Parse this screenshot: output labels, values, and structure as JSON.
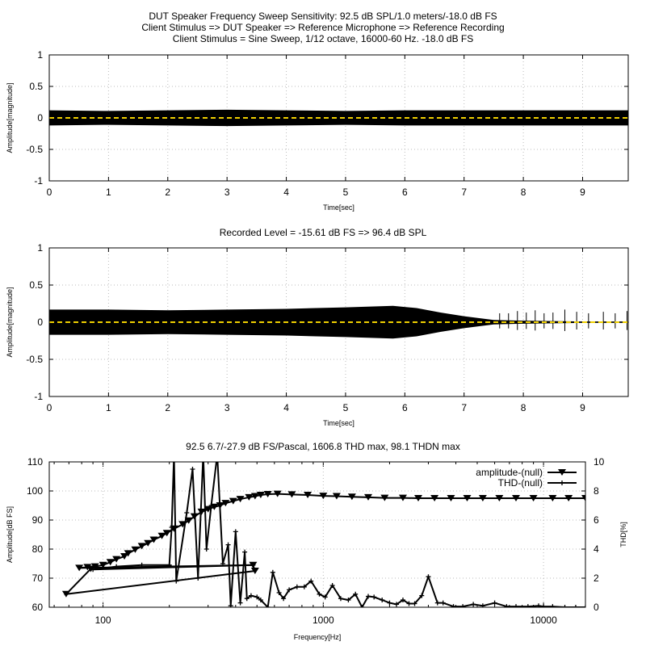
{
  "chart_data": [
    {
      "type": "line",
      "title_lines": [
        "DUT Speaker Frequency Sweep Sensitivity: 92.5 dB SPL/1.0 meters/-18.0 dB FS",
        "Client Stimulus => DUT Speaker => Reference Microphone => Reference Recording",
        "Client Stimulus = Sine Sweep, 1/12 octave, 16000-60 Hz. -18.0 dB FS"
      ],
      "xlabel": "Time[sec]",
      "ylabel": "Amplitude[magnitude]",
      "xlim": [
        0,
        9.77
      ],
      "ylim": [
        -1,
        1
      ],
      "xticks": [
        "0",
        "1",
        "2",
        "3",
        "4",
        "5",
        "6",
        "7",
        "8",
        "9"
      ],
      "yticks": [
        "-1",
        "-0.5",
        "0",
        "0.5",
        "1"
      ],
      "envelope": [
        [
          0,
          0.12
        ],
        [
          1,
          0.11
        ],
        [
          2,
          0.12
        ],
        [
          3,
          0.13
        ],
        [
          4,
          0.12
        ],
        [
          5,
          0.11
        ],
        [
          6,
          0.12
        ],
        [
          7,
          0.12
        ],
        [
          8,
          0.12
        ],
        [
          9,
          0.12
        ],
        [
          9.77,
          0.12
        ]
      ],
      "zero_line_color": "#f0d000"
    },
    {
      "type": "line",
      "title": "Recorded Level = -15.61 dB FS  => 96.4 dB SPL",
      "xlabel": "Time[sec]",
      "ylabel": "Amplitude[magnitude]",
      "xlim": [
        0,
        9.77
      ],
      "ylim": [
        -1,
        1
      ],
      "xticks": [
        "0",
        "1",
        "2",
        "3",
        "4",
        "5",
        "6",
        "7",
        "8",
        "9"
      ],
      "yticks": [
        "-1",
        "-0.5",
        "0",
        "0.5",
        "1"
      ],
      "envelope": [
        [
          0,
          0.17
        ],
        [
          1,
          0.17
        ],
        [
          2,
          0.16
        ],
        [
          3,
          0.17
        ],
        [
          4,
          0.18
        ],
        [
          5,
          0.2
        ],
        [
          5.8,
          0.22
        ],
        [
          6.2,
          0.19
        ],
        [
          6.6,
          0.13
        ],
        [
          7,
          0.08
        ],
        [
          7.5,
          0.03
        ],
        [
          8,
          0.02
        ],
        [
          9,
          0.01
        ],
        [
          9.77,
          0.01
        ]
      ],
      "spikes": [
        [
          7.6,
          0.12
        ],
        [
          7.75,
          0.12
        ],
        [
          7.9,
          0.15
        ],
        [
          8.05,
          0.13
        ],
        [
          8.2,
          0.16
        ],
        [
          8.35,
          0.12
        ],
        [
          8.5,
          0.13
        ],
        [
          8.7,
          0.17
        ],
        [
          8.9,
          0.14
        ],
        [
          9.1,
          0.12
        ],
        [
          9.35,
          0.14
        ],
        [
          9.55,
          0.12
        ],
        [
          9.75,
          0.15
        ]
      ],
      "zero_line_color": "#f0d000"
    },
    {
      "type": "line",
      "title": "92.5 6.7/-27.9 dB FS/Pascal, 1606.8 THD max, 98.1 THDN max",
      "xlabel": "Frequency[Hz]",
      "ylabel": "Amplitude[dB FS]",
      "y2label": "THD[%]",
      "xscale": "log",
      "xlim": [
        57,
        15500
      ],
      "ylim": [
        60,
        110
      ],
      "y2lim": [
        0,
        10
      ],
      "xticks": [
        "100",
        "1000",
        "10000"
      ],
      "yticks": [
        "60",
        "70",
        "80",
        "90",
        "100",
        "110"
      ],
      "y2ticks": [
        "0",
        "2",
        "4",
        "6",
        "8",
        "10"
      ],
      "legend": "top-right",
      "series": [
        {
          "name": "amplitude-(null)",
          "axis": "left",
          "marker": "triangle-down",
          "points": [
            [
              15500,
              97.5
            ],
            [
              13000,
              97.5
            ],
            [
              11000,
              97.5
            ],
            [
              9000,
              97.5
            ],
            [
              7500,
              97.5
            ],
            [
              6300,
              97.5
            ],
            [
              5300,
              97.5
            ],
            [
              4500,
              97.5
            ],
            [
              3800,
              97.5
            ],
            [
              3200,
              97.5
            ],
            [
              2700,
              97.5
            ],
            [
              2300,
              97.6
            ],
            [
              1900,
              97.6
            ],
            [
              1600,
              97.8
            ],
            [
              1350,
              98
            ],
            [
              1150,
              98.2
            ],
            [
              1000,
              98.3
            ],
            [
              850,
              98.6
            ],
            [
              720,
              98.8
            ],
            [
              620,
              99
            ],
            [
              560,
              98.9
            ],
            [
              520,
              98.6
            ],
            [
              490,
              98.2
            ],
            [
              460,
              97.8
            ],
            [
              420,
              97.2
            ],
            [
              390,
              96.5
            ],
            [
              360,
              95.8
            ],
            [
              340,
              95
            ],
            [
              320,
              94.5
            ],
            [
              300,
              93.7
            ],
            [
              280,
              92.8
            ],
            [
              260,
              91.2
            ],
            [
              245,
              89.8
            ],
            [
              230,
              88.5
            ],
            [
              210,
              87
            ],
            [
              195,
              85.5
            ],
            [
              185,
              84.5
            ],
            [
              170,
              83.2
            ],
            [
              160,
              82
            ],
            [
              150,
              81
            ],
            [
              140,
              79.8
            ],
            [
              130,
              78.5
            ],
            [
              125,
              77.5
            ],
            [
              115,
              76.5
            ],
            [
              108,
              75.5
            ],
            [
              100,
              74.5
            ],
            [
              92,
              74
            ],
            [
              85,
              73.8
            ],
            [
              78,
              73.5
            ],
            [
              480,
              74.5
            ],
            [
              490,
              72.5
            ],
            [
              68,
              64.5
            ],
            [
              88,
              73.2
            ]
          ]
        },
        {
          "name": "THD-(null)",
          "axis": "right",
          "marker": "plus",
          "points": [
            [
              15500,
              0
            ],
            [
              14000,
              0
            ],
            [
              12500,
              0
            ],
            [
              11000,
              0.05
            ],
            [
              10000,
              0.05
            ],
            [
              9500,
              0.1
            ],
            [
              8500,
              0.05
            ],
            [
              7500,
              0.05
            ],
            [
              6800,
              0.05
            ],
            [
              6000,
              0.3
            ],
            [
              5300,
              0.1
            ],
            [
              4800,
              0.2
            ],
            [
              4300,
              0.05
            ],
            [
              3900,
              0.05
            ],
            [
              3500,
              0.3
            ],
            [
              3300,
              0.3
            ],
            [
              3000,
              2.1
            ],
            [
              2800,
              0.8
            ],
            [
              2600,
              0.25
            ],
            [
              2450,
              0.25
            ],
            [
              2300,
              0.5
            ],
            [
              2150,
              0.2
            ],
            [
              2000,
              0.3
            ],
            [
              1850,
              0.5
            ],
            [
              1700,
              0.7
            ],
            [
              1600,
              0.75
            ],
            [
              1500,
              0
            ],
            [
              1400,
              0.9
            ],
            [
              1300,
              0.5
            ],
            [
              1200,
              0.6
            ],
            [
              1100,
              1.5
            ],
            [
              1020,
              0.7
            ],
            [
              960,
              0.9
            ],
            [
              880,
              1.8
            ],
            [
              820,
              1.4
            ],
            [
              760,
              1.4
            ],
            [
              700,
              1.2
            ],
            [
              660,
              0.6
            ],
            [
              630,
              1.0
            ],
            [
              590,
              2.4
            ],
            [
              560,
              0
            ],
            [
              520,
              0.5
            ],
            [
              500,
              0.7
            ],
            [
              470,
              0.8
            ],
            [
              450,
              0.6
            ],
            [
              440,
              3.8
            ],
            [
              420,
              0.3
            ],
            [
              400,
              5.2
            ],
            [
              380,
              0.1
            ],
            [
              370,
              4.3
            ],
            [
              350,
              3.0
            ],
            [
              330,
              10.5
            ],
            [
              310,
              7
            ],
            [
              295,
              4
            ],
            [
              285,
              10.5
            ],
            [
              270,
              2.0
            ],
            [
              255,
              9.5
            ],
            [
              240,
              6.5
            ],
            [
              215,
              1.8
            ],
            [
              210,
              10.5
            ],
            [
              205,
              5.5
            ],
            [
              200,
              2.9
            ],
            [
              150,
              2.9
            ],
            [
              115,
              2.8
            ],
            [
              90,
              2.6
            ],
            [
              480,
              2.9
            ]
          ]
        }
      ]
    }
  ]
}
